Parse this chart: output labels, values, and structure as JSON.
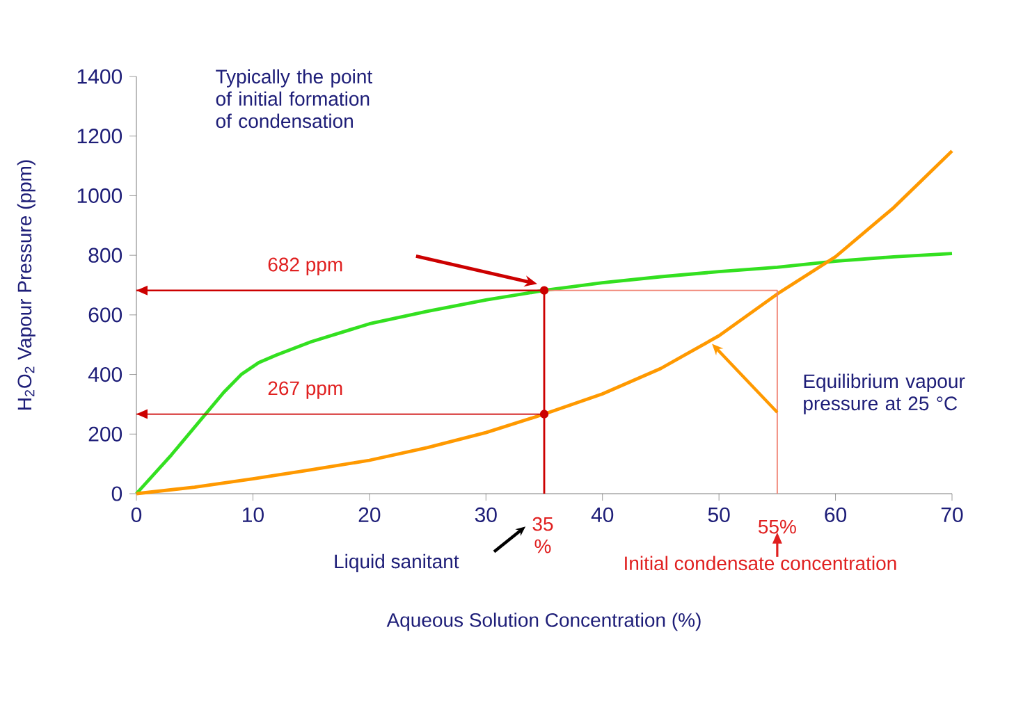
{
  "chart_data": {
    "type": "line",
    "xlabel": "Aqueous Solution Concentration (%)",
    "ylabel": "H$_{2}$O$_{2}$ Vapour Pressure (ppm)",
    "xlim": [
      0,
      70
    ],
    "ylim": [
      0,
      1400
    ],
    "xticks": [
      0,
      10,
      20,
      30,
      40,
      50,
      60,
      70
    ],
    "yticks": [
      0,
      200,
      400,
      600,
      800,
      1000,
      1200,
      1400
    ],
    "grid": false,
    "line_style": "solid",
    "series": [
      {
        "color": "#33e020",
        "x": [
          0,
          3,
          6,
          7.5,
          9,
          10.5,
          12,
          15,
          20,
          25,
          30,
          35,
          40,
          45,
          50,
          55,
          60,
          65,
          70
        ],
        "values": [
          0,
          130,
          270,
          340,
          400,
          440,
          465,
          510,
          570,
          612,
          650,
          682,
          708,
          728,
          745,
          760,
          780,
          795,
          806
        ]
      },
      {
        "color": "#ff9900",
        "x": [
          0,
          5,
          10,
          15,
          20,
          25,
          30,
          35,
          40,
          45,
          50,
          55,
          60,
          65,
          70
        ],
        "values": [
          0,
          22,
          50,
          80,
          112,
          155,
          205,
          267,
          335,
          420,
          530,
          670,
          795,
          960,
          1150
        ]
      },
      {
        "color": "#cc0000",
        "x": [
          35,
          0
        ],
        "values": [
          682,
          682
        ]
      },
      {
        "color": "#cc0000",
        "x": [
          35,
          0
        ],
        "values": [
          267,
          267
        ]
      },
      {
        "color": "#cc0000",
        "x": [
          35,
          35
        ],
        "values": [
          682,
          0
        ]
      },
      {
        "color": "#f08070",
        "x": [
          35,
          55,
          55
        ],
        "values": [
          682,
          682,
          0
        ]
      },
      {
        "type": "scatter",
        "color": "#cc0000",
        "x": [
          35,
          35
        ],
        "values": [
          682,
          267
        ]
      }
    ],
    "annotations": [
      "682 ppm",
      "267 ppm",
      "Typically the point of initial formation of condensation",
      "Equilibrium vapour pressure at 25 °C",
      "35 %",
      "55%",
      "Liquid sanitant",
      "Initial condensate concentration"
    ]
  }
}
